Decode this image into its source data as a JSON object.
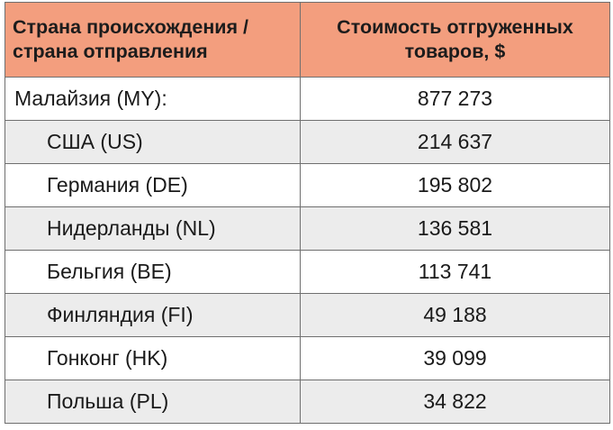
{
  "table": {
    "header": {
      "country_line1": "Страна происхождения /",
      "country_line2": "страна отправления",
      "value_line1": "Стоимость отгруженных",
      "value_line2": "товаров, $"
    },
    "rows": [
      {
        "country": "Малайзия (MY):",
        "value": "877 273"
      },
      {
        "country": "США (US)",
        "value": "214 637"
      },
      {
        "country": "Германия (DE)",
        "value": "195 802"
      },
      {
        "country": "Нидерланды (NL)",
        "value": "136 581"
      },
      {
        "country": "Бельгия (BE)",
        "value": "113 741"
      },
      {
        "country": "Финляндия (FI)",
        "value": "49 188"
      },
      {
        "country": "Гонконг (HK)",
        "value": "39 099"
      },
      {
        "country": "Польша (PL)",
        "value": "34 822"
      }
    ]
  },
  "colors": {
    "header_background": "#f39e7e",
    "even_row_background": "#ececec",
    "odd_row_background": "#ffffff",
    "border": "#6f6f6f"
  }
}
